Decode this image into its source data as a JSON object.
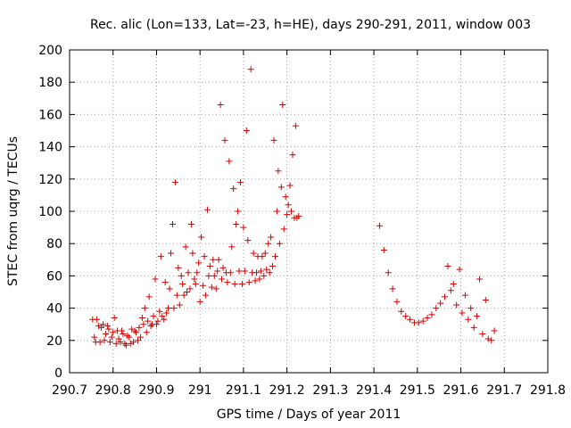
{
  "chart_data": {
    "type": "scatter",
    "title": "Rec. alic (Lon=133, Lat=-23, h=HE), days 290-291, 2011, window 003",
    "xlabel": "GPS time / Days of year 2011",
    "ylabel": "STEC from uqrg / TECUs",
    "xlim": [
      290.7,
      291.8
    ],
    "ylim": [
      0,
      200
    ],
    "xticks": [
      290.7,
      290.8,
      290.9,
      291.0,
      291.1,
      291.2,
      291.3,
      291.4,
      291.5,
      291.6,
      291.7,
      291.8
    ],
    "xtick_labels": [
      "290.7",
      "290.8",
      "290.9",
      "291",
      "291.1",
      "291.2",
      "291.3",
      "291.4",
      "291.5",
      "291.6",
      "291.7",
      "291.8"
    ],
    "yticks": [
      0,
      20,
      40,
      60,
      80,
      100,
      120,
      140,
      160,
      180,
      200
    ],
    "ytick_labels": [
      "0",
      "20",
      "40",
      "60",
      "80",
      "100",
      "120",
      "140",
      "160",
      "180",
      "200"
    ],
    "grid": true,
    "marker": "+",
    "color": "#d40000",
    "points": [
      [
        290.753,
        33
      ],
      [
        290.757,
        22
      ],
      [
        290.76,
        19
      ],
      [
        290.763,
        33
      ],
      [
        290.767,
        29
      ],
      [
        290.77,
        19
      ],
      [
        290.773,
        28
      ],
      [
        290.777,
        30
      ],
      [
        290.78,
        20
      ],
      [
        290.783,
        24
      ],
      [
        290.787,
        29
      ],
      [
        290.79,
        27
      ],
      [
        290.793,
        19
      ],
      [
        290.797,
        22
      ],
      [
        290.8,
        25
      ],
      [
        290.803,
        34
      ],
      [
        290.807,
        18
      ],
      [
        290.81,
        26
      ],
      [
        290.813,
        21
      ],
      [
        290.817,
        19
      ],
      [
        290.82,
        26
      ],
      [
        290.823,
        24
      ],
      [
        290.827,
        18
      ],
      [
        290.83,
        17
      ],
      [
        290.833,
        23
      ],
      [
        290.837,
        22
      ],
      [
        290.84,
        18
      ],
      [
        290.843,
        27
      ],
      [
        290.847,
        19
      ],
      [
        290.85,
        26
      ],
      [
        290.853,
        25
      ],
      [
        290.857,
        20
      ],
      [
        290.86,
        28
      ],
      [
        290.863,
        22
      ],
      [
        290.867,
        34
      ],
      [
        290.87,
        30
      ],
      [
        290.873,
        40
      ],
      [
        290.877,
        25
      ],
      [
        290.88,
        32
      ],
      [
        290.883,
        47
      ],
      [
        290.887,
        29
      ],
      [
        290.89,
        30
      ],
      [
        290.893,
        35
      ],
      [
        290.897,
        58
      ],
      [
        290.9,
        30
      ],
      [
        290.903,
        32
      ],
      [
        290.907,
        38
      ],
      [
        290.91,
        72
      ],
      [
        290.913,
        35
      ],
      [
        290.917,
        33
      ],
      [
        290.92,
        56
      ],
      [
        290.923,
        37
      ],
      [
        290.927,
        40
      ],
      [
        290.93,
        52
      ],
      [
        290.933,
        74
      ],
      [
        290.937,
        92
      ],
      [
        290.94,
        40
      ],
      [
        290.943,
        118
      ],
      [
        290.947,
        48
      ],
      [
        290.95,
        65
      ],
      [
        290.953,
        42
      ],
      [
        290.957,
        60
      ],
      [
        290.96,
        55
      ],
      [
        290.963,
        48
      ],
      [
        290.967,
        78
      ],
      [
        290.97,
        50
      ],
      [
        290.973,
        62
      ],
      [
        290.977,
        52
      ],
      [
        290.98,
        92
      ],
      [
        290.983,
        74
      ],
      [
        290.987,
        58
      ],
      [
        290.99,
        55
      ],
      [
        290.993,
        62
      ],
      [
        290.997,
        68
      ],
      [
        291.0,
        44
      ],
      [
        291.003,
        84
      ],
      [
        291.007,
        54
      ],
      [
        291.01,
        72
      ],
      [
        291.013,
        48
      ],
      [
        291.017,
        101
      ],
      [
        291.02,
        60
      ],
      [
        291.023,
        66
      ],
      [
        291.027,
        53
      ],
      [
        291.03,
        70
      ],
      [
        291.033,
        60
      ],
      [
        291.037,
        52
      ],
      [
        291.04,
        63
      ],
      [
        291.043,
        70
      ],
      [
        291.047,
        166
      ],
      [
        291.05,
        58
      ],
      [
        291.053,
        65
      ],
      [
        291.057,
        144
      ],
      [
        291.06,
        62
      ],
      [
        291.063,
        56
      ],
      [
        291.067,
        131
      ],
      [
        291.07,
        62
      ],
      [
        291.073,
        78
      ],
      [
        291.077,
        114
      ],
      [
        291.08,
        55
      ],
      [
        291.083,
        92
      ],
      [
        291.087,
        100
      ],
      [
        291.09,
        63
      ],
      [
        291.093,
        118
      ],
      [
        291.097,
        55
      ],
      [
        291.1,
        90
      ],
      [
        291.103,
        63
      ],
      [
        291.107,
        150
      ],
      [
        291.11,
        82
      ],
      [
        291.113,
        56
      ],
      [
        291.117,
        188
      ],
      [
        291.12,
        62
      ],
      [
        291.123,
        74
      ],
      [
        291.127,
        57
      ],
      [
        291.13,
        62
      ],
      [
        291.133,
        72
      ],
      [
        291.137,
        58
      ],
      [
        291.14,
        63
      ],
      [
        291.143,
        72
      ],
      [
        291.147,
        60
      ],
      [
        291.15,
        74
      ],
      [
        291.153,
        64
      ],
      [
        291.157,
        80
      ],
      [
        291.16,
        62
      ],
      [
        291.163,
        84
      ],
      [
        291.167,
        66
      ],
      [
        291.17,
        144
      ],
      [
        291.173,
        72
      ],
      [
        291.177,
        100
      ],
      [
        291.18,
        125
      ],
      [
        291.183,
        80
      ],
      [
        291.187,
        115
      ],
      [
        291.19,
        166
      ],
      [
        291.193,
        89
      ],
      [
        291.197,
        109
      ],
      [
        291.2,
        98
      ],
      [
        291.203,
        104
      ],
      [
        291.207,
        116
      ],
      [
        291.21,
        100
      ],
      [
        291.213,
        135
      ],
      [
        291.217,
        96
      ],
      [
        291.22,
        153
      ],
      [
        291.223,
        96
      ],
      [
        291.227,
        97
      ],
      [
        291.413,
        91
      ],
      [
        291.423,
        76
      ],
      [
        291.433,
        62
      ],
      [
        291.443,
        52
      ],
      [
        291.453,
        44
      ],
      [
        291.463,
        38
      ],
      [
        291.473,
        35
      ],
      [
        291.483,
        33
      ],
      [
        291.493,
        31
      ],
      [
        291.503,
        31
      ],
      [
        291.513,
        32
      ],
      [
        291.523,
        34
      ],
      [
        291.533,
        36
      ],
      [
        291.543,
        40
      ],
      [
        291.553,
        43
      ],
      [
        291.563,
        47
      ],
      [
        291.57,
        66
      ],
      [
        291.577,
        51
      ],
      [
        291.583,
        55
      ],
      [
        291.59,
        42
      ],
      [
        291.597,
        64
      ],
      [
        291.603,
        37
      ],
      [
        291.61,
        48
      ],
      [
        291.617,
        33
      ],
      [
        291.623,
        40
      ],
      [
        291.63,
        28
      ],
      [
        291.637,
        35
      ],
      [
        291.643,
        58
      ],
      [
        291.65,
        24
      ],
      [
        291.657,
        45
      ],
      [
        291.663,
        21
      ],
      [
        291.67,
        20
      ],
      [
        291.677,
        26
      ]
    ]
  }
}
